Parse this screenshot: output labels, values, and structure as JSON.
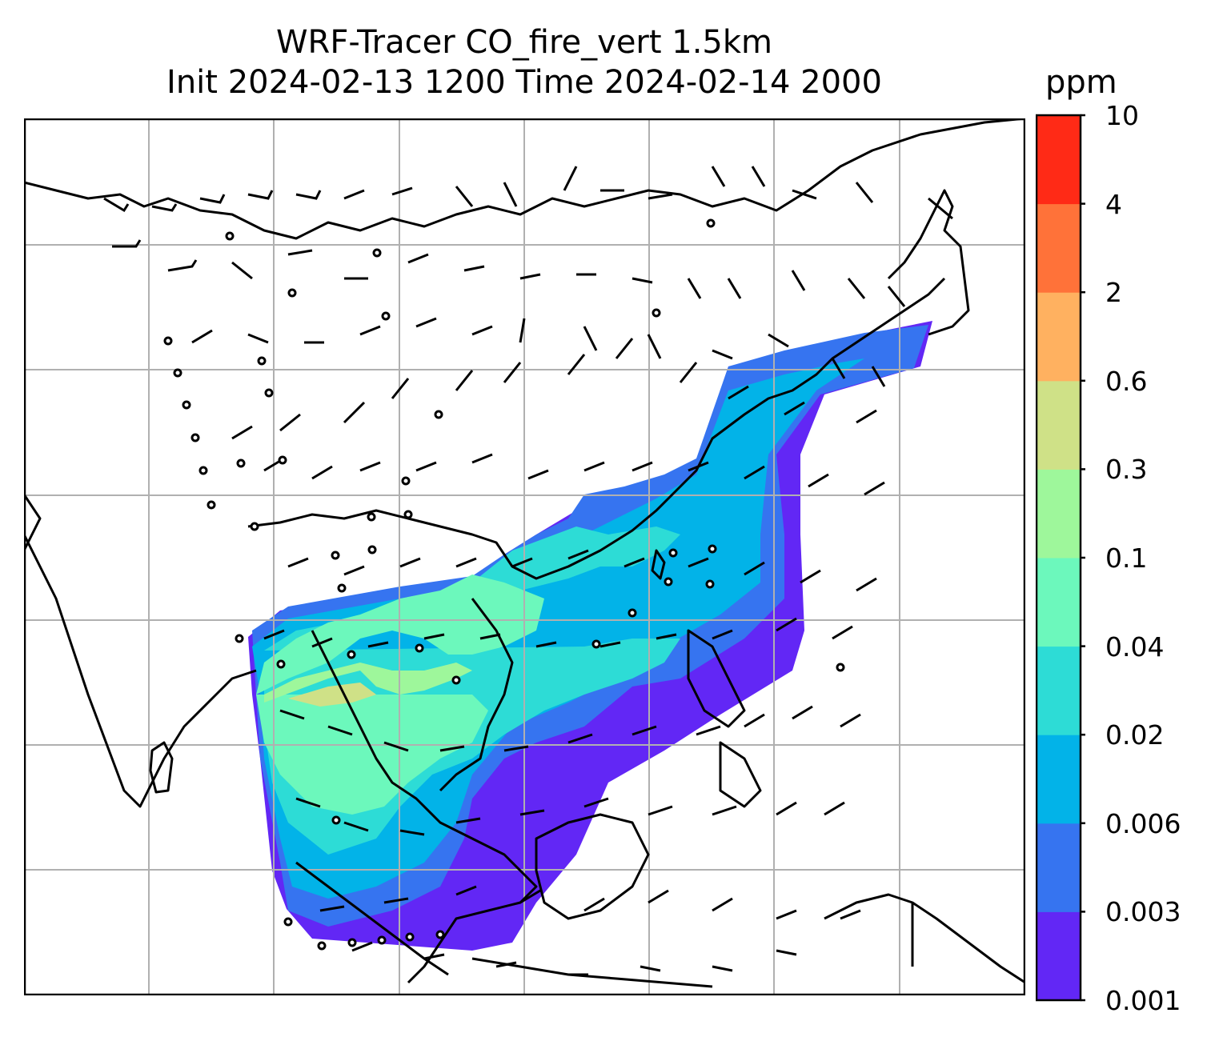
{
  "title": {
    "line1": "WRF-Tracer CO_fire_vert 1.5km",
    "line2": "Init 2024-02-13 1200 Time 2024-02-14 2000"
  },
  "colorbar": {
    "unit": "ppm",
    "levels": [
      "0.001",
      "0.003",
      "0.006",
      "0.02",
      "0.04",
      "0.1",
      "0.3",
      "0.6",
      "2",
      "4",
      "10"
    ],
    "colors": [
      "#6227f5",
      "#3674f0",
      "#02b3e8",
      "#2ddcd6",
      "#6cf8bc",
      "#9ef79b",
      "#cfe187",
      "#ffb160",
      "#ff7239",
      "#ff2a16"
    ]
  },
  "map": {
    "gridlines": true,
    "wind_barbs": true,
    "coastlines": true
  }
}
